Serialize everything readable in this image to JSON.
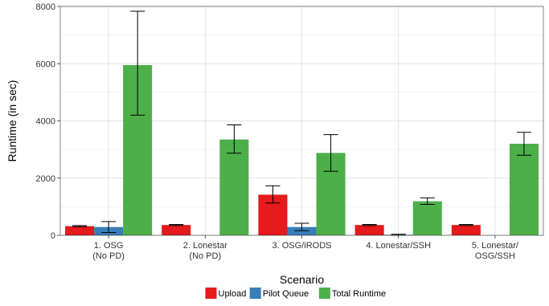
{
  "chart_data": {
    "type": "bar",
    "title": "",
    "xlabel": "Scenario",
    "ylabel": "Runtime (in sec)",
    "ylim": [
      0,
      8000
    ],
    "yticks": [
      0,
      2000,
      4000,
      6000,
      8000
    ],
    "grid": true,
    "legend_position": "bottom",
    "categories": [
      [
        "1. OSG",
        "(No PD)"
      ],
      [
        "2. Lonestar",
        "(No PD)"
      ],
      [
        "3. OSG/iRODS"
      ],
      [
        "4. Lonestar/SSH"
      ],
      [
        "5. Lonestar/",
        "OSG/SSH"
      ]
    ],
    "series": [
      {
        "name": "Upload",
        "color": "#e41a1c",
        "values": [
          320,
          360,
          1420,
          360,
          360
        ],
        "error": [
          [
            300,
            340
          ],
          [
            340,
            380
          ],
          [
            1130,
            1730
          ],
          [
            340,
            380
          ],
          [
            340,
            380
          ]
        ]
      },
      {
        "name": "Pilot Queue",
        "color": "#377eb8",
        "values": [
          290,
          0,
          290,
          20,
          0
        ],
        "error": [
          [
            100,
            480
          ],
          null,
          [
            160,
            420
          ],
          [
            0,
            40
          ],
          null
        ]
      },
      {
        "name": "Total Runtime",
        "color": "#4daf4a",
        "values": [
          5950,
          3350,
          2880,
          1190,
          3200
        ],
        "error": [
          [
            4200,
            7830
          ],
          [
            2870,
            3860
          ],
          [
            2240,
            3520
          ],
          [
            1080,
            1310
          ],
          [
            2800,
            3600
          ]
        ]
      }
    ]
  }
}
